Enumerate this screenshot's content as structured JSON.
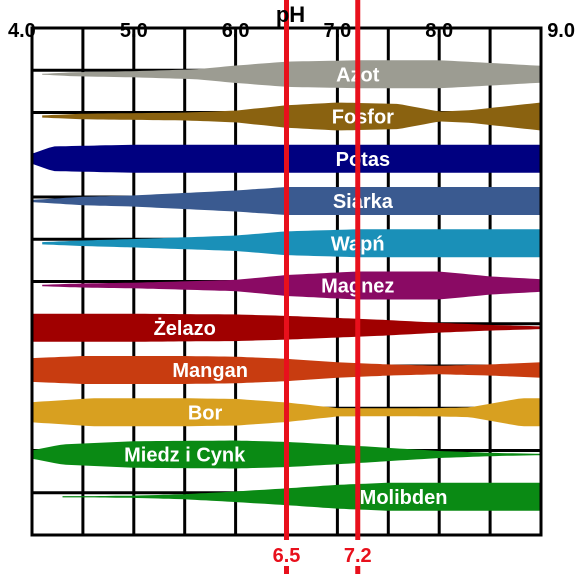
{
  "chart_data": {
    "type": "area",
    "axis": {
      "title": "pH",
      "range": [
        4.0,
        9.0
      ],
      "tick_values": [
        4.0,
        5.0,
        6.0,
        7.0,
        8.0,
        9.0
      ],
      "tick_labels": [
        "4.0",
        "5.0",
        "6.0",
        "7.0",
        "8.0",
        "9.0"
      ],
      "grid": true
    },
    "reference_lines": [
      {
        "value": 6.5,
        "label": "6.5",
        "color": "#e8101c"
      },
      {
        "value": 7.2,
        "label": "7.2",
        "color": "#e8101c"
      }
    ],
    "series": [
      {
        "name": "Azot",
        "color": "#9c9c92",
        "label_at": 7.2,
        "availability": [
          [
            4.1,
            0.03
          ],
          [
            4.4,
            0.14
          ],
          [
            5.0,
            0.22
          ],
          [
            5.6,
            0.35
          ],
          [
            6.0,
            0.62
          ],
          [
            6.5,
            0.9
          ],
          [
            7.2,
            1.0
          ],
          [
            8.0,
            1.0
          ],
          [
            8.4,
            0.85
          ],
          [
            9.0,
            0.6
          ]
        ]
      },
      {
        "name": "Fosfor",
        "color": "#8a6210",
        "label_at": 7.25,
        "availability": [
          [
            4.1,
            0.08
          ],
          [
            4.5,
            0.2
          ],
          [
            5.5,
            0.28
          ],
          [
            6.0,
            0.42
          ],
          [
            6.5,
            0.8
          ],
          [
            7.0,
            1.0
          ],
          [
            7.6,
            0.9
          ],
          [
            8.0,
            0.35
          ],
          [
            8.3,
            0.45
          ],
          [
            9.0,
            1.0
          ]
        ]
      },
      {
        "name": "Potas",
        "color": "#000080",
        "label_at": 7.25,
        "availability": [
          [
            4.0,
            0.35
          ],
          [
            4.2,
            0.88
          ],
          [
            5.0,
            1.0
          ],
          [
            6.0,
            1.0
          ],
          [
            6.5,
            1.0
          ],
          [
            7.2,
            1.0
          ],
          [
            8.0,
            1.0
          ],
          [
            9.0,
            1.0
          ]
        ]
      },
      {
        "name": "Siarka",
        "color": "#3a5a90",
        "label_at": 7.25,
        "availability": [
          [
            4.0,
            0.08
          ],
          [
            4.5,
            0.3
          ],
          [
            5.0,
            0.4
          ],
          [
            6.0,
            0.75
          ],
          [
            6.5,
            1.0
          ],
          [
            7.2,
            1.0
          ],
          [
            8.0,
            1.0
          ],
          [
            9.0,
            1.0
          ]
        ]
      },
      {
        "name": "Wapń",
        "color": "#1a90b8",
        "label_at": 7.2,
        "availability": [
          [
            4.1,
            0.08
          ],
          [
            4.5,
            0.2
          ],
          [
            5.0,
            0.3
          ],
          [
            6.0,
            0.55
          ],
          [
            6.5,
            0.85
          ],
          [
            7.2,
            1.0
          ],
          [
            8.0,
            1.0
          ],
          [
            9.0,
            1.0
          ]
        ]
      },
      {
        "name": "Magnez",
        "color": "#8a0a64",
        "label_at": 7.2,
        "availability": [
          [
            4.1,
            0.05
          ],
          [
            4.5,
            0.15
          ],
          [
            5.0,
            0.2
          ],
          [
            6.0,
            0.4
          ],
          [
            6.5,
            0.75
          ],
          [
            7.2,
            1.0
          ],
          [
            8.0,
            1.0
          ],
          [
            8.5,
            0.65
          ],
          [
            9.0,
            0.45
          ]
        ]
      },
      {
        "name": "Żelazo",
        "color": "#a00000",
        "label_at": 5.5,
        "availability": [
          [
            4.0,
            1.0
          ],
          [
            5.0,
            1.0
          ],
          [
            6.0,
            0.95
          ],
          [
            6.5,
            0.85
          ],
          [
            7.0,
            0.7
          ],
          [
            7.5,
            0.55
          ],
          [
            8.0,
            0.35
          ],
          [
            8.5,
            0.2
          ],
          [
            9.0,
            0.1
          ]
        ]
      },
      {
        "name": "Mangan",
        "color": "#c83c10",
        "label_at": 5.75,
        "availability": [
          [
            4.0,
            0.85
          ],
          [
            4.5,
            1.0
          ],
          [
            5.5,
            1.0
          ],
          [
            6.0,
            0.95
          ],
          [
            6.5,
            0.8
          ],
          [
            7.0,
            0.55
          ],
          [
            7.5,
            0.4
          ],
          [
            8.0,
            0.3
          ],
          [
            8.5,
            0.4
          ],
          [
            9.0,
            0.55
          ]
        ]
      },
      {
        "name": "Bor",
        "color": "#d8a020",
        "label_at": 5.7,
        "availability": [
          [
            4.0,
            0.72
          ],
          [
            4.6,
            1.0
          ],
          [
            5.5,
            1.0
          ],
          [
            6.0,
            0.95
          ],
          [
            6.5,
            0.7
          ],
          [
            7.0,
            0.3
          ],
          [
            7.5,
            0.28
          ],
          [
            8.0,
            0.3
          ],
          [
            8.3,
            0.35
          ],
          [
            8.8,
            1.0
          ],
          [
            9.0,
            1.0
          ]
        ]
      },
      {
        "name": "Miedz i Cynk",
        "color": "#0a8a14",
        "label_at": 5.5,
        "availability": [
          [
            4.0,
            0.3
          ],
          [
            4.3,
            0.72
          ],
          [
            5.0,
            0.95
          ],
          [
            6.0,
            1.0
          ],
          [
            6.5,
            0.9
          ],
          [
            7.0,
            0.7
          ],
          [
            8.0,
            0.25
          ],
          [
            8.6,
            0.1
          ],
          [
            9.0,
            0.05
          ]
        ]
      },
      {
        "name": "Molibden",
        "color": "#0a8a14",
        "label_at": 7.65,
        "availability": [
          [
            4.3,
            0.02
          ],
          [
            5.0,
            0.08
          ],
          [
            5.5,
            0.18
          ],
          [
            6.0,
            0.38
          ],
          [
            6.5,
            0.6
          ],
          [
            7.0,
            0.85
          ],
          [
            7.5,
            1.0
          ],
          [
            8.0,
            1.0
          ],
          [
            9.0,
            1.0
          ]
        ]
      }
    ]
  }
}
